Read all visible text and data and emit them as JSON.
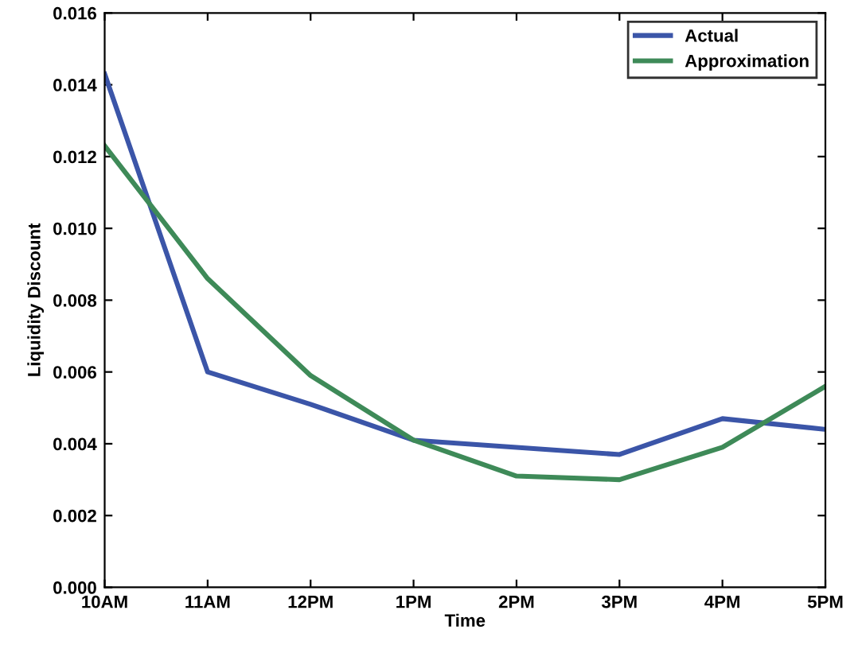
{
  "chart_data": {
    "type": "line",
    "xlabel": "Time",
    "ylabel": "Liquidity Discount",
    "categories": [
      "10AM",
      "11AM",
      "12PM",
      "1PM",
      "2PM",
      "3PM",
      "4PM",
      "5PM"
    ],
    "series": [
      {
        "name": "Actual",
        "color": "#3b55a8",
        "values": [
          0.0143,
          0.006,
          0.0051,
          0.0041,
          0.0039,
          0.0037,
          0.0047,
          0.0044
        ]
      },
      {
        "name": "Approximation",
        "color": "#3e8a58",
        "values": [
          0.0123,
          0.0086,
          0.0059,
          0.0041,
          0.0031,
          0.003,
          0.0039,
          0.0056
        ]
      }
    ],
    "ylim": [
      0,
      0.016
    ],
    "yticks": [
      {
        "value": 0,
        "label": "0.000"
      },
      {
        "value": 0.002,
        "label": "0.002"
      },
      {
        "value": 0.004,
        "label": "0.004"
      },
      {
        "value": 0.006,
        "label": "0.006"
      },
      {
        "value": 0.008,
        "label": "0.008"
      },
      {
        "value": 0.01,
        "label": "0.010"
      },
      {
        "value": 0.012,
        "label": "0.012"
      },
      {
        "value": 0.014,
        "label": "0.014"
      },
      {
        "value": 0.016,
        "label": "0.016"
      }
    ],
    "legend": "top right",
    "grid": false,
    "marker": "none",
    "line_style": "solid"
  }
}
